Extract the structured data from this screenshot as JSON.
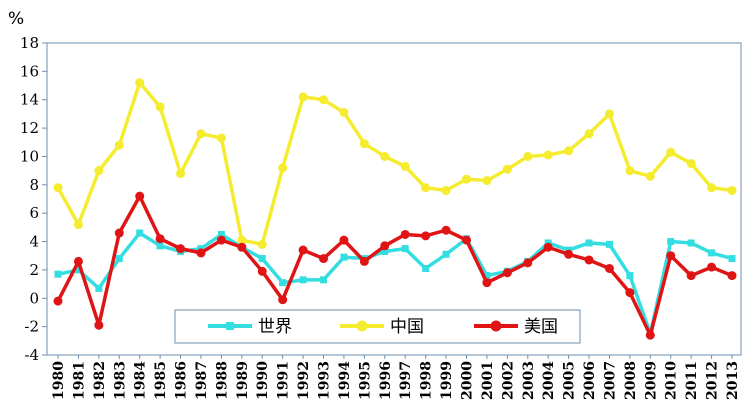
{
  "chart_data": {
    "type": "line",
    "unit_label": "%",
    "ylim": [
      -4,
      18
    ],
    "yticks": [
      "-4",
      "-2",
      "0",
      "2",
      "4",
      "6",
      "8",
      "10",
      "12",
      "14",
      "16",
      "18"
    ],
    "x": [
      "1980",
      "1981",
      "1982",
      "1983",
      "1984",
      "1985",
      "1986",
      "1987",
      "1988",
      "1989",
      "1990",
      "1991",
      "1992",
      "1993",
      "1994",
      "1995",
      "1996",
      "1997",
      "1998",
      "1999",
      "2000",
      "2001",
      "2002",
      "2003",
      "2004",
      "2005",
      "2006",
      "2007",
      "2008",
      "2009",
      "2010",
      "2011",
      "2012",
      "2013"
    ],
    "series": [
      {
        "name": "世界",
        "color": "#33dde0",
        "marker": "square",
        "values": [
          1.7,
          2.0,
          0.7,
          2.8,
          4.6,
          3.7,
          3.3,
          3.5,
          4.5,
          3.6,
          2.8,
          1.1,
          1.3,
          1.3,
          2.9,
          2.8,
          3.3,
          3.5,
          2.1,
          3.1,
          4.2,
          1.6,
          1.9,
          2.6,
          3.9,
          3.4,
          3.9,
          3.8,
          1.6,
          -2.5,
          4.0,
          3.9,
          3.2,
          2.8
        ]
      },
      {
        "name": "中国",
        "color": "#f5ec2f",
        "marker": "circle",
        "values": [
          7.8,
          5.2,
          9.0,
          10.8,
          15.2,
          13.5,
          8.8,
          11.6,
          11.3,
          4.1,
          3.8,
          9.2,
          14.2,
          14.0,
          13.1,
          10.9,
          10.0,
          9.3,
          7.8,
          7.6,
          8.4,
          8.3,
          9.1,
          10.0,
          10.1,
          10.4,
          11.6,
          13.0,
          9.0,
          8.6,
          10.3,
          9.5,
          7.8,
          7.6
        ]
      },
      {
        "name": "美国",
        "color": "#e01414",
        "marker": "circle",
        "values": [
          -0.2,
          2.6,
          -1.9,
          4.6,
          7.2,
          4.2,
          3.5,
          3.2,
          4.1,
          3.6,
          1.9,
          -0.1,
          3.4,
          2.8,
          4.1,
          2.6,
          3.7,
          4.5,
          4.4,
          4.8,
          4.1,
          1.1,
          1.8,
          2.5,
          3.6,
          3.1,
          2.7,
          2.1,
          0.4,
          -2.6,
          3.0,
          1.6,
          2.2,
          1.6
        ]
      }
    ],
    "legend_position": "bottom-center",
    "grid": false
  }
}
